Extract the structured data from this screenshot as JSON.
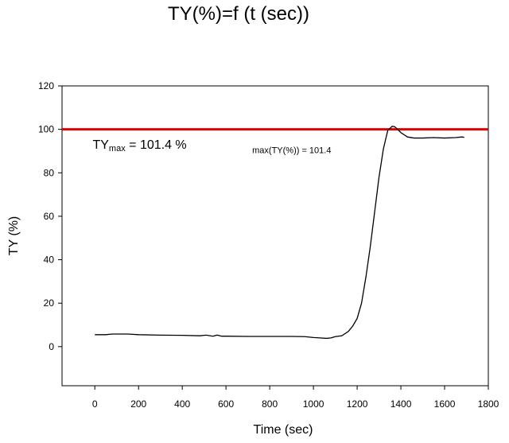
{
  "title": "TY(%)=f (t (sec))",
  "chart_data": {
    "type": "line",
    "title": "TY(%)=f (t (sec))",
    "xlabel": "Time (sec)",
    "ylabel": "TY (%)",
    "xlim": [
      -150,
      1800
    ],
    "ylim": [
      -18,
      120
    ],
    "xticks": [
      0,
      200,
      400,
      600,
      800,
      1000,
      1200,
      1400,
      1600,
      1800
    ],
    "yticks": [
      0,
      20,
      40,
      60,
      80,
      100,
      120
    ],
    "grid": false,
    "reference_line": {
      "y": 100,
      "color": "#e00000"
    },
    "annotations": [
      {
        "text_main": "TY",
        "text_sub": "max",
        "text_rest": " = 101.4 %",
        "x": -10,
        "y": 91
      },
      {
        "text": "max(TY(%)) = 101.4",
        "x": 720,
        "y": 89
      }
    ],
    "series": [
      {
        "color": "#000000",
        "x": [
          0,
          50,
          80,
          150,
          200,
          300,
          400,
          480,
          510,
          540,
          560,
          580,
          600,
          700,
          800,
          900,
          960,
          1000,
          1030,
          1060,
          1080,
          1100,
          1130,
          1160,
          1180,
          1200,
          1220,
          1240,
          1260,
          1280,
          1300,
          1320,
          1340,
          1360,
          1370,
          1380,
          1400,
          1430,
          1460,
          1500,
          1550,
          1600,
          1650,
          1680,
          1690
        ],
        "y": [
          5.5,
          5.5,
          5.8,
          5.8,
          5.5,
          5.3,
          5.2,
          5.0,
          5.3,
          4.8,
          5.3,
          4.8,
          4.8,
          4.7,
          4.7,
          4.7,
          4.6,
          4.2,
          4.0,
          3.8,
          4.0,
          4.6,
          5.0,
          7.0,
          9.5,
          13.0,
          20.0,
          32.0,
          46.0,
          62.0,
          78.0,
          91.0,
          99.5,
          101.4,
          101.3,
          100.5,
          98.5,
          96.5,
          96.0,
          96.0,
          96.2,
          96.0,
          96.2,
          96.5,
          96.3
        ]
      }
    ]
  }
}
